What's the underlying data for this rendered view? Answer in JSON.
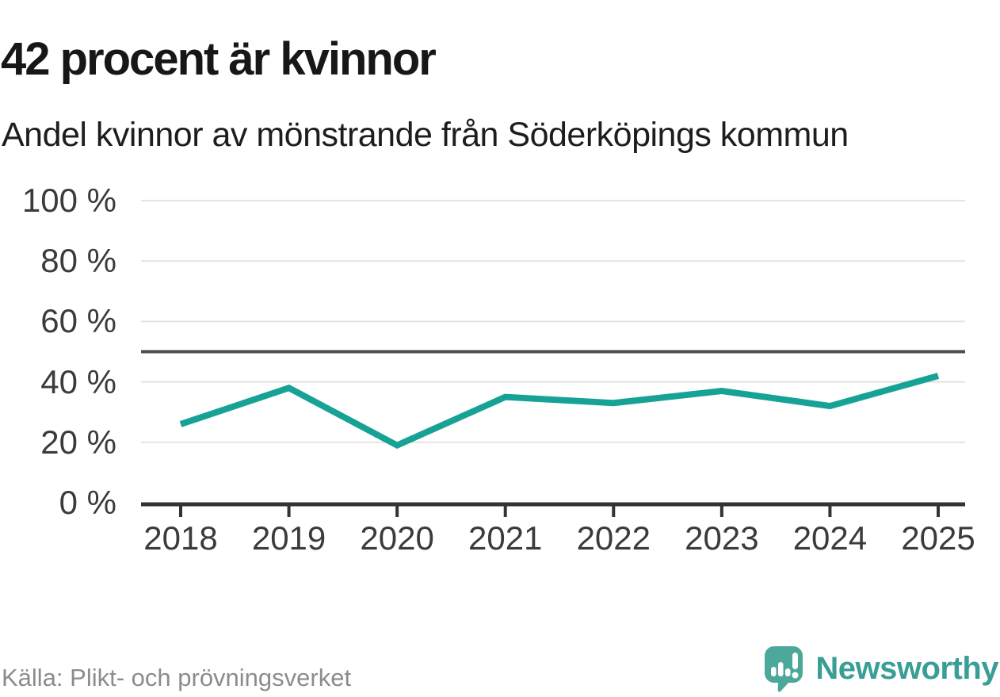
{
  "chart_data": {
    "type": "line",
    "title": "42 procent är kvinnor",
    "subtitle": "Andel kvinnor av mönstrande från Söderköpings kommun",
    "categories": [
      "2018",
      "2019",
      "2020",
      "2021",
      "2022",
      "2023",
      "2024",
      "2025"
    ],
    "values": [
      26,
      38,
      19,
      35,
      33,
      37,
      32,
      42
    ],
    "unit": "%",
    "ylim": [
      0,
      100
    ],
    "yticks": [
      0,
      20,
      40,
      60,
      80,
      100
    ],
    "ytick_suffix": " %",
    "reference_line": 50,
    "grid": true,
    "legend": "none",
    "line_color": "#17a296",
    "grid_color": "#e3e3e3",
    "reference_line_color": "#4d4d4d",
    "axis_color": "#333333"
  },
  "footer": {
    "source": "Källa: Plikt- och prövningsverket"
  },
  "brand": {
    "name": "Newsworthy",
    "logo_icon": "bar-chart-exclamation-bubble-icon",
    "text_color": "#399e95",
    "bubble_color": "#4ca89a"
  }
}
